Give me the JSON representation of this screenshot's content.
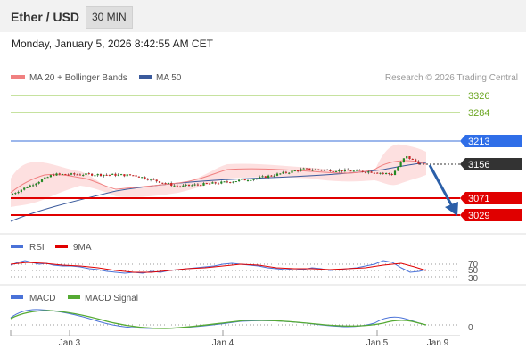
{
  "header": {
    "title": "Ether / USD",
    "timeframe": "30 MIN"
  },
  "datetime": "Monday, January 5, 2026 8:42:55 AM CET",
  "legend": {
    "ma20": "MA 20 + Bollinger Bands",
    "ma50": "MA 50",
    "rsi": "RSI",
    "rsi_ma": "9MA",
    "macd": "MACD",
    "macd_signal": "MACD Signal"
  },
  "credit": "Research © 2026 Trading Central",
  "colors": {
    "resistance": "#8cc63f",
    "pivot": "#3a6fd8",
    "support": "#e00000",
    "price_tag": "#333333",
    "arrow": "#2b5fa8",
    "ma20": "#f08080",
    "ma50": "#3a5a9c",
    "rsi": "#4a72d8",
    "macd_signal": "#55aa33"
  },
  "levels": [
    {
      "label": "3326",
      "type": "resistance"
    },
    {
      "label": "3284",
      "type": "resistance"
    },
    {
      "label": "3213",
      "type": "pivot"
    },
    {
      "label": "3156",
      "type": "current"
    },
    {
      "label": "3071",
      "type": "support"
    },
    {
      "label": "3029",
      "type": "support"
    }
  ],
  "rsi_levels": [
    "70",
    "50",
    "30"
  ],
  "macd_zero": "0",
  "x_labels": [
    "Jan 3",
    "Jan 4",
    "Jan 5",
    "Jan 9"
  ],
  "chart_data": {
    "type": "line",
    "series": [
      {
        "name": "Ether / USD",
        "x": [
          "Jan 2 18:00",
          "Jan 3 00:00",
          "Jan 3 06:00",
          "Jan 3 12:00",
          "Jan 3 18:00",
          "Jan 4 00:00",
          "Jan 4 06:00",
          "Jan 4 12:00",
          "Jan 4 18:00",
          "Jan 5 00:00",
          "Jan 5 03:00",
          "Jan 5 06:00",
          "Jan 5 08:30"
        ],
        "values": [
          3080,
          3130,
          3130,
          3128,
          3100,
          3110,
          3121,
          3143,
          3140,
          3136,
          3130,
          3175,
          3156
        ]
      }
    ],
    "levels": [
      3326,
      3284,
      3213,
      3156,
      3071,
      3029
    ],
    "ylim": [
      2990,
      3350
    ]
  }
}
